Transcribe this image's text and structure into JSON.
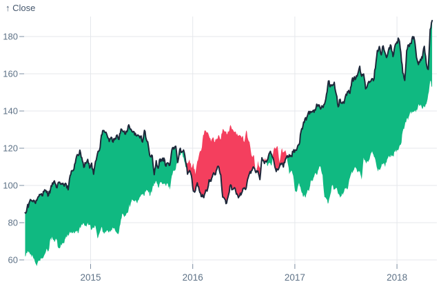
{
  "chart_data": {
    "type": "area",
    "variant": "difference-band",
    "y_label": "↑ Close",
    "x_ticks": [
      "2015",
      "2016",
      "2017",
      "2018"
    ],
    "y_ticks": [
      60,
      80,
      100,
      120,
      140,
      160,
      180
    ],
    "y_domain": [
      54,
      192
    ],
    "x_domain_years": [
      2014.36,
      2018.35
    ],
    "series_name": "Close",
    "band_rule": "green where close is above its value 52 weeks earlier, red where below",
    "start_date": "2013-05-13",
    "interval_days": 7,
    "offset_weeks": 52,
    "close": [
      61.89,
      63.59,
      64.31,
      63.12,
      61.72,
      59.07,
      56.65,
      59.63,
      60.93,
      60.71,
      62.94,
      66.08,
      64.92,
      71.76,
      71.57,
      69.6,
      71.17,
      66.41,
      66.77,
      68.96,
      69.0,
      72.7,
      72.85,
      75.14,
      74.29,
      74.37,
      74.99,
      74.26,
      77.78,
      79.2,
      79.64,
      78.43,
      80.01,
      78.91,
      76.13,
      77.24,
      78.01,
      71.51,
      74.24,
      77.71,
      75.04,
      75.18,
      75.96,
      74.96,
      76.12,
      76.69,
      75.97,
      74.23,
      75.04,
      81.71,
      84.65,
      83.65,
      85.36,
      87.73,
      90.43,
      92.22,
      91.28,
      90.91,
      91.98,
      94.03,
      95.22,
      94.43,
      97.67,
      96.13,
      94.74,
      97.98,
      101.32,
      102.5,
      98.97,
      101.66,
      100.96,
      100.75,
      99.62,
      100.73,
      97.67,
      105.22,
      108.0,
      108.86,
      114.18,
      116.47,
      119.0,
      115.0,
      109.73,
      111.78,
      113.99,
      109.33,
      112.01,
      105.99,
      112.98,
      117.16,
      118.93,
      127.08,
      129.5,
      128.46,
      126.6,
      123.59,
      125.9,
      123.25,
      125.32,
      127.1,
      124.75,
      130.28,
      128.95,
      127.62,
      128.77,
      132.54,
      130.28,
      128.65,
      127.17,
      126.6,
      126.75,
      126.44,
      123.28,
      129.62,
      124.5,
      121.3,
      115.52,
      115.96,
      105.76,
      113.29,
      109.27,
      114.21,
      113.45,
      114.71,
      110.38,
      112.12,
      111.04,
      119.08,
      119.5,
      121.06,
      112.34,
      119.3,
      117.81,
      119.03,
      113.18,
      106.03,
      108.03,
      105.26,
      96.96,
      97.13,
      101.42,
      97.34,
      94.02,
      93.99,
      96.04,
      96.91,
      103.01,
      102.26,
      105.92,
      105.67,
      108.66,
      109.85,
      105.68,
      93.74,
      92.72,
      90.52,
      95.22,
      100.35,
      97.92,
      98.83,
      95.33,
      93.4,
      95.89,
      96.68,
      98.78,
      98.66,
      104.21,
      107.48,
      108.18,
      109.36,
      106.94,
      107.73,
      103.13,
      114.92,
      112.71,
      113.05,
      114.06,
      117.63,
      116.6,
      113.72,
      108.84,
      108.43,
      110.06,
      111.79,
      109.9,
      113.95,
      115.97,
      116.52,
      115.82,
      117.91,
      119.04,
      120.0,
      121.95,
      129.08,
      132.12,
      135.72,
      136.66,
      139.78,
      139.14,
      139.99,
      140.64,
      143.66,
      143.34,
      141.05,
      142.27,
      143.65,
      148.96,
      156.1,
      153.06,
      153.61,
      155.45,
      148.98,
      142.27,
      146.28,
      144.02,
      144.18,
      149.04,
      150.27,
      149.5,
      156.39,
      157.48,
      157.5,
      159.86,
      164.05,
      158.63,
      159.88,
      151.89,
      154.12,
      155.3,
      156.99,
      156.25,
      163.05,
      172.5,
      174.67,
      170.15,
      174.97,
      171.05,
      169.37,
      173.97,
      175.01,
      169.23,
      175.0,
      177.09,
      178.46,
      171.51,
      160.5,
      156.41,
      172.43,
      175.5,
      176.21,
      179.98,
      178.02,
      168.85,
      164.94,
      167.78,
      168.38,
      174.73,
      165.72,
      162.32,
      183.83,
      188.59
    ],
    "colors": {
      "gain": "#10b981",
      "loss": "#f43f5e",
      "line": "#1e293b",
      "grid": "#e4e7eb",
      "axis_text": "#5d7186",
      "tick_mark": "#7e8fa3",
      "label_text": "#44566c",
      "background": "#ffffff"
    }
  }
}
